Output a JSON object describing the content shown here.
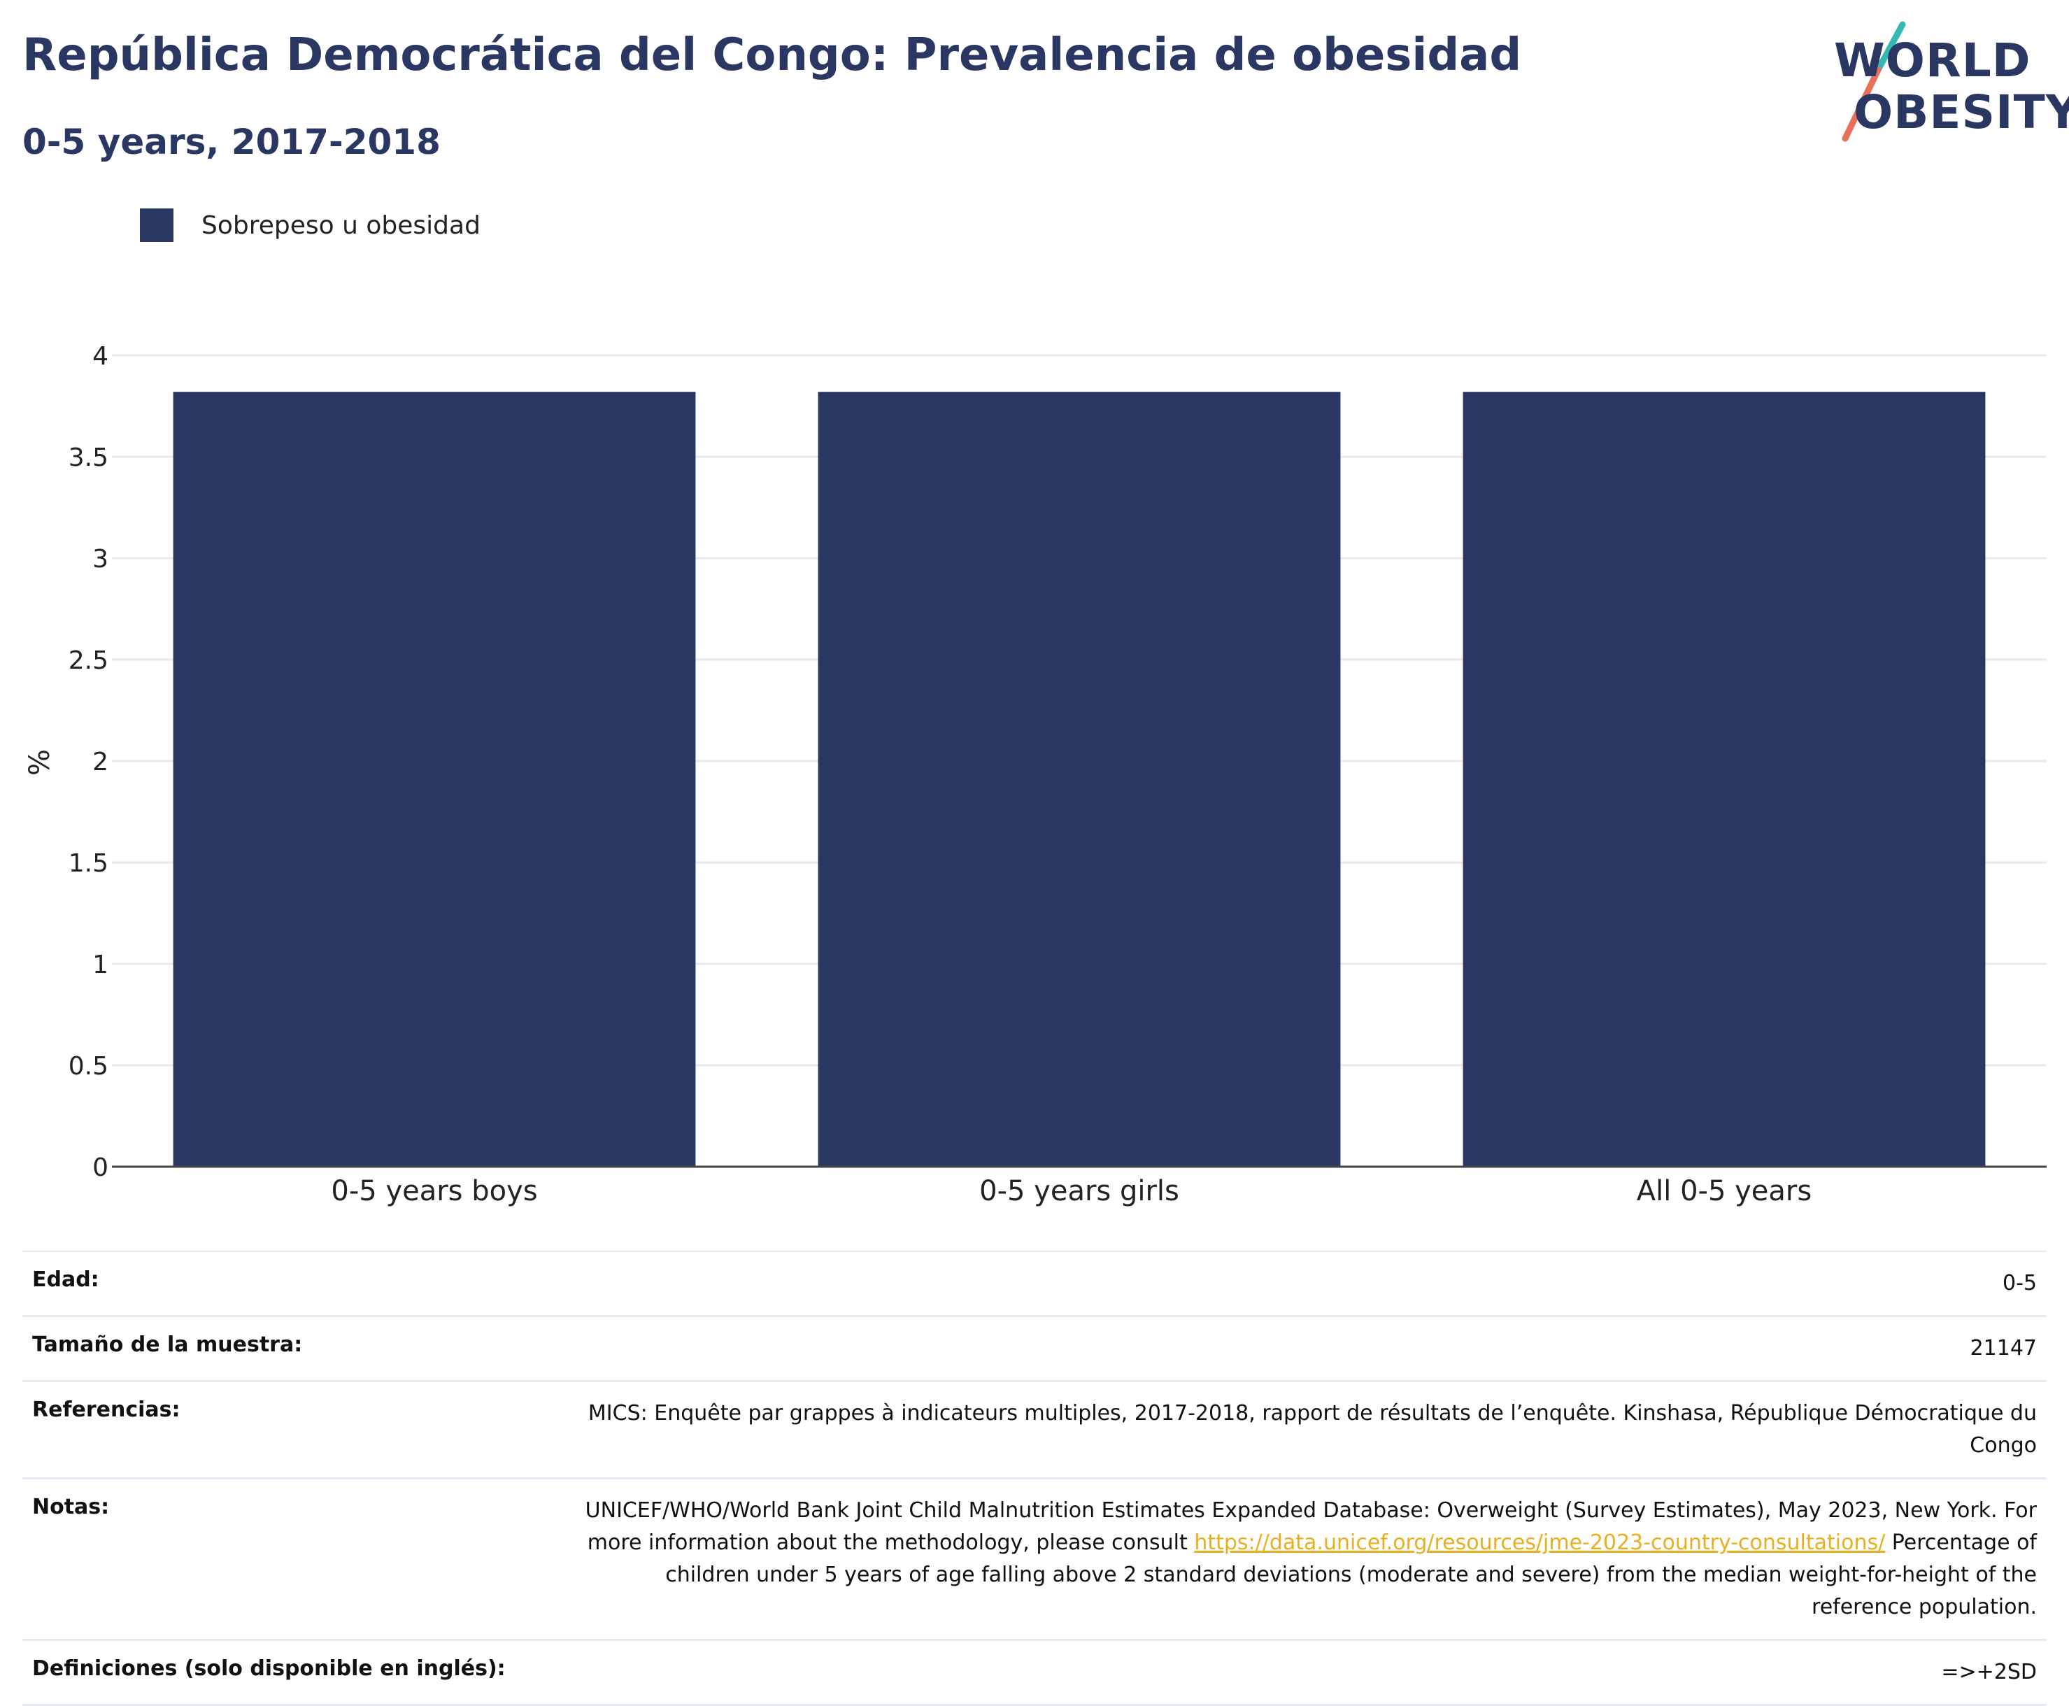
{
  "title": "República Democrática del Congo: Prevalencia de obesidad",
  "subtitle": "0-5 years, 2017-2018",
  "logo": {
    "line1": "WORLD",
    "line2": "OBESITY",
    "colors": {
      "text": "#2b3763",
      "slash_top": "#35b8b4",
      "slash_bottom": "#e8705a"
    }
  },
  "colors": {
    "bar": "#2b3763",
    "grid": "#e8e8ee",
    "axis": "#444444",
    "link": "#e8b020"
  },
  "chart_data": {
    "type": "bar",
    "title": "República Democrática del Congo: Prevalencia de obesidad",
    "subtitle": "0-5 years, 2017-2018",
    "categories": [
      "0-5 years boys",
      "0-5 years girls",
      "All 0-5 years"
    ],
    "series": [
      {
        "name": "Sobrepeso u obesidad",
        "values": [
          3.82,
          3.82,
          3.82
        ],
        "color": "#2b3763"
      }
    ],
    "xlabel": "",
    "ylabel": "%",
    "ylim": [
      0,
      4
    ],
    "yticks": [
      0,
      0.5,
      1,
      1.5,
      2,
      2.5,
      3,
      3.5,
      4
    ],
    "ytick_labels": [
      "0",
      "0.5",
      "1",
      "1.5",
      "2",
      "2.5",
      "3",
      "3.5",
      "4"
    ],
    "grid": true,
    "legend": "top-left"
  },
  "info": {
    "rows": [
      {
        "label": "Edad:",
        "value": "0-5"
      },
      {
        "label": "Tamaño de la muestra:",
        "value": "21147"
      },
      {
        "label": "Referencias:",
        "value": "MICS: Enquête par grappes à indicateurs multiples, 2017-2018, rapport de résultats de l’enquête. Kinshasa, République Démocratique du Congo"
      },
      {
        "label": "Notas:",
        "value_before_link": "UNICEF/WHO/World Bank Joint Child Malnutrition Estimates Expanded Database: Overweight (Survey Estimates), May 2023, New York. For more information about the methodology, please consult ",
        "link": "https://data.unicef.org/resources/jme-2023-country-consultations/",
        "value_after_link": " Percentage of children under 5 years of age falling above 2 standard deviations (moderate and severe) from the median weight-for-height of the reference population."
      },
      {
        "label": "Definiciones (solo disponible en inglés):",
        "value": "=>+2SD"
      }
    ]
  }
}
